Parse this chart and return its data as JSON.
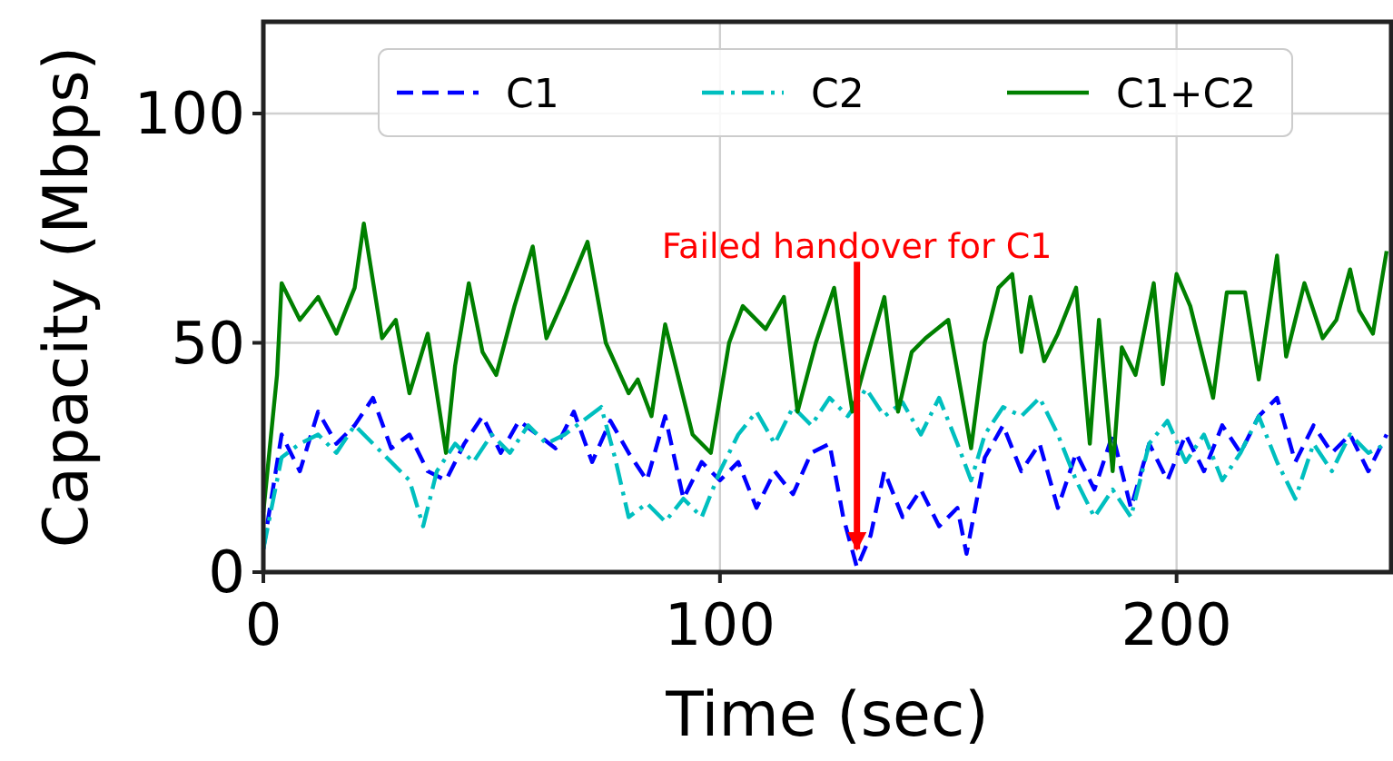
{
  "chart_data": {
    "type": "line",
    "xlabel": "Time (sec)",
    "ylabel": "Capacity (Mbps)",
    "xlim": [
      0,
      247
    ],
    "ylim": [
      0,
      120
    ],
    "xticks": [
      0,
      100,
      200
    ],
    "yticks": [
      0,
      50,
      100
    ],
    "grid": true,
    "legend": "top",
    "annotations": [
      {
        "text": "Failed handover for C1",
        "x": 130,
        "y": 5
      }
    ],
    "series": [
      {
        "name": "C1",
        "color": "#0000ff",
        "line_style": "dashed",
        "x": [
          0,
          4,
          8,
          12,
          16,
          20,
          24,
          28,
          32,
          36,
          40,
          44,
          48,
          52,
          56,
          60,
          64,
          68,
          72,
          76,
          80,
          84,
          88,
          92,
          96,
          100,
          104,
          108,
          112,
          116,
          120,
          124,
          127,
          130,
          133,
          136,
          140,
          144,
          148,
          152,
          154,
          158,
          162,
          166,
          170,
          174,
          178,
          182,
          186,
          190,
          194,
          198,
          202,
          206,
          210,
          214,
          218,
          222,
          226,
          230,
          234,
          238,
          242,
          246
        ],
        "values": [
          5,
          30,
          22,
          35,
          28,
          32,
          38,
          27,
          30,
          22,
          20,
          28,
          34,
          26,
          33,
          30,
          27,
          35,
          24,
          33,
          26,
          20,
          34,
          16,
          24,
          20,
          24,
          14,
          22,
          17,
          26,
          28,
          12,
          1,
          8,
          22,
          12,
          18,
          10,
          14,
          4,
          25,
          32,
          22,
          28,
          14,
          26,
          18,
          30,
          14,
          28,
          20,
          30,
          22,
          32,
          26,
          34,
          38,
          24,
          32,
          26,
          30,
          22,
          30
        ]
      },
      {
        "name": "C2",
        "color": "#00bfbf",
        "line_style": "dashdot",
        "x": [
          0,
          4,
          8,
          12,
          16,
          20,
          24,
          28,
          32,
          35,
          38,
          42,
          46,
          50,
          54,
          58,
          62,
          66,
          70,
          74,
          77,
          80,
          84,
          88,
          92,
          96,
          100,
          104,
          108,
          112,
          116,
          120,
          124,
          128,
          132,
          136,
          140,
          144,
          148,
          152,
          155,
          158,
          162,
          166,
          170,
          174,
          178,
          182,
          186,
          190,
          194,
          198,
          202,
          206,
          210,
          214,
          218,
          222,
          226,
          230,
          234,
          238,
          242,
          246
        ],
        "values": [
          5,
          25,
          28,
          30,
          26,
          32,
          28,
          24,
          20,
          10,
          22,
          28,
          24,
          30,
          26,
          32,
          28,
          30,
          33,
          36,
          25,
          12,
          15,
          11,
          16,
          12,
          22,
          30,
          35,
          28,
          36,
          32,
          38,
          34,
          40,
          34,
          37,
          30,
          38,
          28,
          20,
          30,
          36,
          34,
          38,
          30,
          20,
          12,
          18,
          12,
          28,
          33,
          24,
          30,
          20,
          26,
          34,
          24,
          16,
          28,
          22,
          30,
          26,
          28
        ]
      },
      {
        "name": "C1+C2",
        "color": "#008000",
        "line_style": "solid",
        "x": [
          0,
          3,
          4,
          8,
          12,
          16,
          20,
          22,
          26,
          29,
          32,
          36,
          40,
          42,
          45,
          48,
          51,
          55,
          59,
          62,
          66,
          71,
          75,
          80,
          82,
          85,
          88,
          94,
          98,
          102,
          105,
          110,
          114,
          117,
          121,
          125,
          129,
          132,
          136,
          139,
          142,
          145,
          150,
          155,
          158,
          161,
          164,
          166,
          168,
          171,
          174,
          178,
          181,
          183,
          186,
          188,
          191,
          195,
          197,
          200,
          203,
          208,
          211,
          215,
          218,
          222,
          224,
          228,
          232,
          235,
          238,
          240,
          243,
          246
        ],
        "values": [
          13,
          43,
          63,
          55,
          60,
          52,
          62,
          76,
          51,
          55,
          39,
          52,
          26,
          45,
          63,
          48,
          43,
          58,
          71,
          51,
          60,
          72,
          50,
          39,
          42,
          34,
          54,
          30,
          26,
          50,
          58,
          53,
          60,
          35,
          50,
          62,
          35,
          46,
          60,
          35,
          48,
          51,
          55,
          27,
          50,
          62,
          65,
          48,
          60,
          46,
          52,
          62,
          28,
          55,
          22,
          49,
          43,
          63,
          41,
          65,
          58,
          38,
          61,
          61,
          42,
          69,
          47,
          63,
          51,
          55,
          66,
          57,
          52,
          70
        ]
      }
    ]
  }
}
